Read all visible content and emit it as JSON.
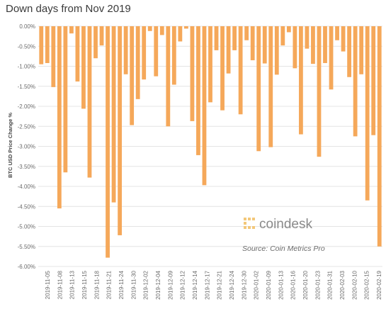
{
  "chart_data": {
    "type": "bar",
    "title": "Down days from Nov 2019",
    "ylabel": "BTC USD Price Change %",
    "ylim": [
      -6.0,
      0.0
    ],
    "y_ticks": [
      "0.00%",
      "-0.50%",
      "-1.00%",
      "-1.50%",
      "-2.00%",
      "-2.50%",
      "-3.00%",
      "-3.50%",
      "-4.00%",
      "-4.50%",
      "-5.00%",
      "-5.50%",
      "-6.00%"
    ],
    "x_tick_labels": [
      "2019-11-05",
      "2019-11-08",
      "2019-11-13",
      "2019-11-15",
      "2019-11-18",
      "2019-11-21",
      "2019-11-24",
      "2019-11-30",
      "2019-12-02",
      "2019-12-04",
      "2019-12-09",
      "2019-12-12",
      "2019-12-14",
      "2019-12-17",
      "2019-12-21",
      "2019-12-24",
      "2019-12-30",
      "2020-01-02",
      "2020-01-09",
      "2020-01-13",
      "2020-01-16",
      "2020-01-20",
      "2020-01-23",
      "2020-01-31",
      "2020-02-03",
      "2020-02-10",
      "2020-02-15",
      "2020-02-19"
    ],
    "values": [
      -0.95,
      -0.92,
      -1.52,
      -4.55,
      -3.65,
      -0.18,
      -1.38,
      -2.06,
      -3.78,
      -0.8,
      -0.48,
      -5.78,
      -4.4,
      -5.22,
      -1.2,
      -2.47,
      -1.82,
      -1.33,
      -0.12,
      -1.25,
      -0.22,
      -2.5,
      -1.46,
      -0.38,
      -0.06,
      -2.37,
      -3.22,
      -3.97,
      -1.9,
      -0.6,
      -2.1,
      -1.18,
      -0.6,
      -2.2,
      -0.35,
      -0.85,
      -3.12,
      -0.93,
      -3.02,
      -1.21,
      -0.48,
      -0.15,
      -1.05,
      -2.7,
      -0.56,
      -0.94,
      -3.26,
      -0.92,
      -1.58,
      -0.35,
      -0.63,
      -1.27,
      -2.75,
      -1.2,
      -4.35,
      -2.72,
      -5.5
    ],
    "bar_color": "#f5a85a",
    "grid": true,
    "source": "Source: Coin Metrics Pro",
    "watermark": "coindesk"
  }
}
